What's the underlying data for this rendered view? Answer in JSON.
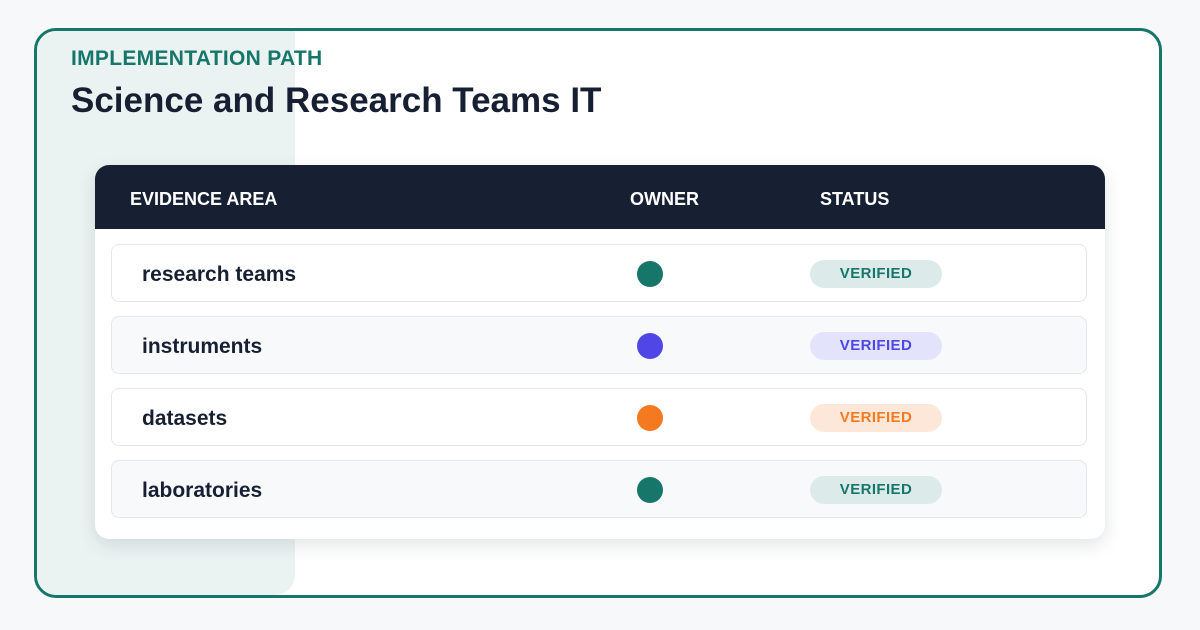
{
  "header": {
    "eyebrow": "IMPLEMENTATION PATH",
    "title": "Science and Research Teams IT"
  },
  "table": {
    "columns": {
      "area": "EVIDENCE AREA",
      "owner": "OWNER",
      "status": "STATUS"
    },
    "rows": [
      {
        "area": "research teams",
        "owner_color": "#17766a",
        "status": "VERIFIED",
        "status_color": "#17766a",
        "status_bg": "#dcebe9"
      },
      {
        "area": "instruments",
        "owner_color": "#5046e5",
        "status": "VERIFIED",
        "status_color": "#5046e5",
        "status_bg": "#e3e3fb"
      },
      {
        "area": "datasets",
        "owner_color": "#f57a1f",
        "status": "VERIFIED",
        "status_color": "#f57a1f",
        "status_bg": "#fde7d8"
      },
      {
        "area": "laboratories",
        "owner_color": "#17766a",
        "status": "VERIFIED",
        "status_color": "#17766a",
        "status_bg": "#dcebe9"
      }
    ]
  }
}
